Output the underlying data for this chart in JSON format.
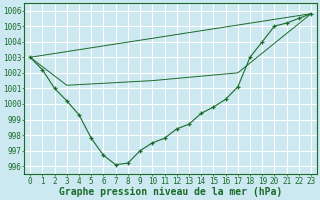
{
  "background_color": "#cce8f0",
  "grid_color": "#ffffff",
  "line_color": "#1a6b2a",
  "marker_color": "#1a6b2a",
  "xlabel": "Graphe pression niveau de la mer (hPa)",
  "xlim": [
    -0.5,
    23.5
  ],
  "ylim": [
    995.5,
    1006.5
  ],
  "yticks": [
    996,
    997,
    998,
    999,
    1000,
    1001,
    1002,
    1003,
    1004,
    1005,
    1006
  ],
  "xticks": [
    0,
    1,
    2,
    3,
    4,
    5,
    6,
    7,
    8,
    9,
    10,
    11,
    12,
    13,
    14,
    15,
    16,
    17,
    18,
    19,
    20,
    21,
    22,
    23
  ],
  "line1_x": [
    0,
    1,
    2,
    3,
    4,
    5,
    6,
    7,
    8,
    9,
    10,
    11,
    12,
    13,
    14,
    15,
    16,
    17,
    18,
    19,
    20,
    21,
    22,
    23
  ],
  "line1_y": [
    1003.0,
    1002.2,
    1001.0,
    1000.2,
    999.3,
    997.8,
    996.7,
    996.1,
    996.2,
    997.0,
    997.5,
    997.8,
    998.4,
    998.7,
    999.4,
    999.8,
    1000.3,
    1001.1,
    1003.0,
    1004.0,
    1005.0,
    1005.2,
    1005.5,
    1005.8
  ],
  "line2_x": [
    0,
    23
  ],
  "line2_y": [
    1003.0,
    1005.8
  ],
  "line3_x": [
    0,
    3,
    10,
    17,
    23
  ],
  "line3_y": [
    1003.0,
    1001.2,
    1001.5,
    1002.0,
    1005.8
  ],
  "xlabel_fontsize": 7,
  "tick_fontsize": 5.5
}
